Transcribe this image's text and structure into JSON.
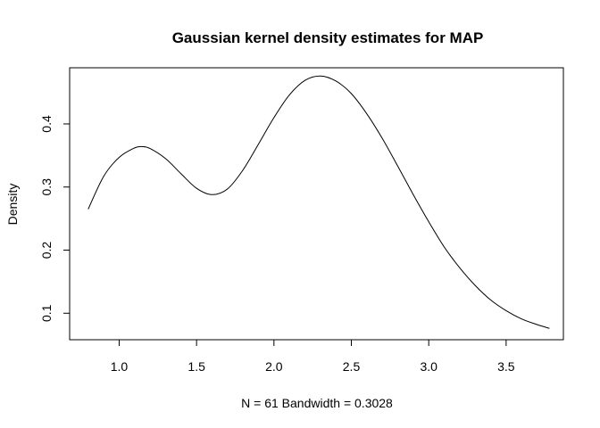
{
  "chart_data": {
    "type": "line",
    "title": "Gaussian kernel density estimates for MAP",
    "xlabel": "N = 61   Bandwidth = 0.3028",
    "ylabel": "Density",
    "xlim": [
      0.68,
      3.87
    ],
    "ylim": [
      0.058,
      0.489
    ],
    "x_ticks": [
      1.0,
      1.5,
      2.0,
      2.5,
      3.0,
      3.5
    ],
    "x_tick_labels": [
      "1.0",
      "1.5",
      "2.0",
      "2.5",
      "3.0",
      "3.5"
    ],
    "y_ticks": [
      0.1,
      0.2,
      0.3,
      0.4
    ],
    "y_tick_labels": [
      "0.1",
      "0.2",
      "0.3",
      "0.4"
    ],
    "grid": false,
    "legend": "none",
    "line_color": "#000000",
    "series": [
      {
        "x": [
          0.8,
          0.9,
          1.0,
          1.1,
          1.15,
          1.2,
          1.3,
          1.4,
          1.5,
          1.6,
          1.7,
          1.8,
          1.9,
          2.0,
          2.1,
          2.2,
          2.3,
          2.4,
          2.5,
          2.6,
          2.7,
          2.8,
          2.9,
          3.0,
          3.1,
          3.2,
          3.3,
          3.4,
          3.5,
          3.6,
          3.7,
          3.78
        ],
        "y": [
          0.265,
          0.317,
          0.347,
          0.362,
          0.364,
          0.361,
          0.345,
          0.321,
          0.298,
          0.288,
          0.297,
          0.327,
          0.368,
          0.41,
          0.446,
          0.469,
          0.476,
          0.468,
          0.448,
          0.416,
          0.377,
          0.333,
          0.288,
          0.245,
          0.205,
          0.172,
          0.144,
          0.121,
          0.104,
          0.091,
          0.082,
          0.076
        ]
      }
    ]
  }
}
